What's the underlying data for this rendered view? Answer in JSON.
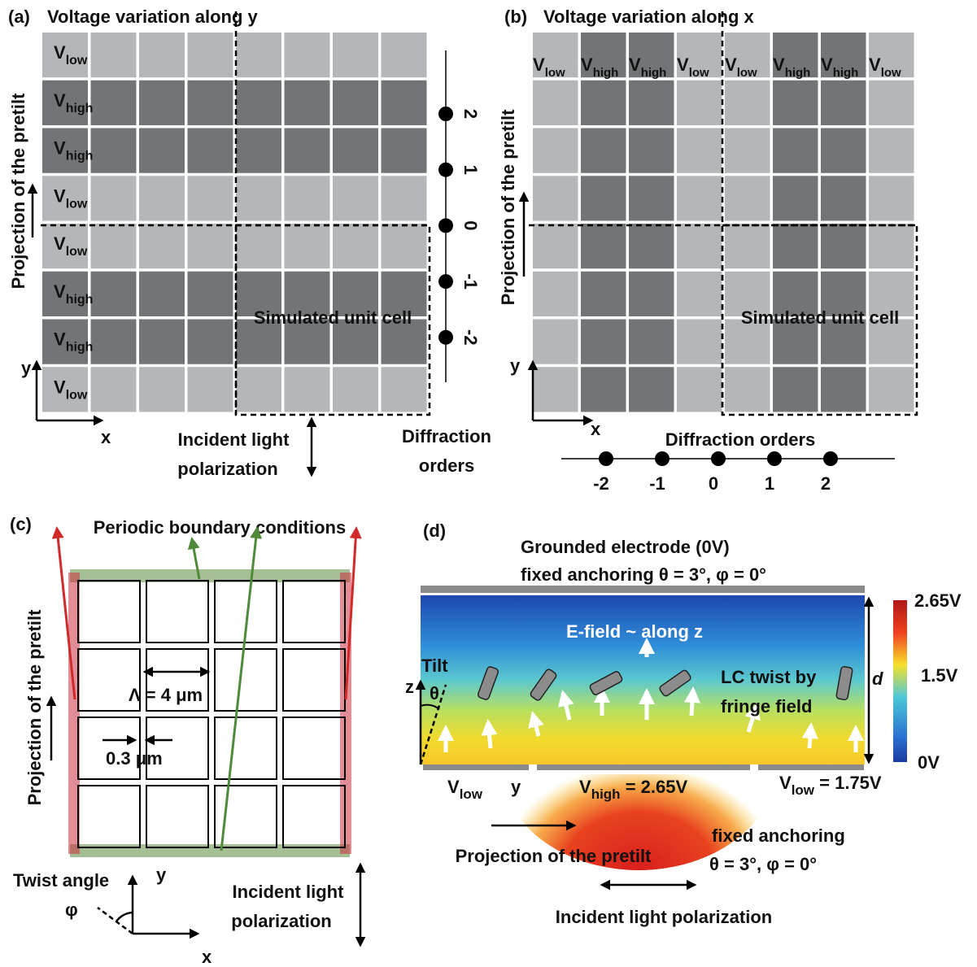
{
  "panel_a": {
    "label": "(a)",
    "title": "Voltage variation along y",
    "rows": [
      {
        "main": "V",
        "sub": "low"
      },
      {
        "main": "V",
        "sub": "high"
      },
      {
        "main": "V",
        "sub": "high"
      },
      {
        "main": "V",
        "sub": "low"
      },
      {
        "main": "V",
        "sub": "low"
      },
      {
        "main": "V",
        "sub": "high"
      },
      {
        "main": "V",
        "sub": "high"
      },
      {
        "main": "V",
        "sub": "low"
      }
    ],
    "pretilt": "Projection of the pretilt",
    "unit_cell": "Simulated unit cell",
    "orders": [
      "2",
      "1",
      "0",
      "-1",
      "-2"
    ],
    "orders_label": [
      "Diffraction",
      "orders"
    ],
    "polarization": [
      "Incident light",
      "polarization"
    ],
    "axis_x": "x",
    "axis_y": "y"
  },
  "panel_b": {
    "label": "(b)",
    "title": "Voltage variation along x",
    "columns": [
      {
        "main": "V",
        "sub": "low"
      },
      {
        "main": "V",
        "sub": "high"
      },
      {
        "main": "V",
        "sub": "high"
      },
      {
        "main": "V",
        "sub": "low"
      },
      {
        "main": "V",
        "sub": "low"
      },
      {
        "main": "V",
        "sub": "high"
      },
      {
        "main": "V",
        "sub": "high"
      },
      {
        "main": "V",
        "sub": "low"
      }
    ],
    "pretilt": "Projection of the pretilt",
    "unit_cell": "Simulated unit cell",
    "orders": [
      "-2",
      "-1",
      "0",
      "1",
      "2"
    ],
    "orders_label": "Diffraction orders",
    "axis_x": "x",
    "axis_y": "y"
  },
  "panel_c": {
    "label": "(c)",
    "boundary": "Periodic boundary conditions",
    "period": "Λ = 4 μm",
    "gap": "0.3 μm",
    "pretilt": "Projection of the pretilt",
    "twist": "Twist angle",
    "phi": "φ",
    "axis_x": "x",
    "axis_y": "y",
    "polarization": [
      "Incident light",
      "polarization"
    ]
  },
  "panel_d": {
    "label": "(d)",
    "top": [
      "Grounded electrode (0V)",
      "fixed anchoring θ = 3°, φ = 0°"
    ],
    "efield": "E-field ~ along z",
    "tilt": "Tilt",
    "z": "z",
    "theta": "θ",
    "twist": [
      "LC twist by",
      "fringe field"
    ],
    "d": "d",
    "colorbar": [
      "2.65V",
      "1.5V",
      "0V"
    ],
    "v_low_left": {
      "main": "V",
      "sub": "low"
    },
    "y": "y",
    "v_high": {
      "main": "V",
      "sub": "high",
      "rest": " = 2.65V"
    },
    "v_low_right": {
      "main": "V",
      "sub": "low",
      "rest": " = 1.75V"
    },
    "pretilt": "Projection of the pretilt",
    "bottom_anchoring": [
      "fixed anchoring",
      "θ = 3°, φ = 0°"
    ],
    "polarization": "Incident light polarization"
  }
}
